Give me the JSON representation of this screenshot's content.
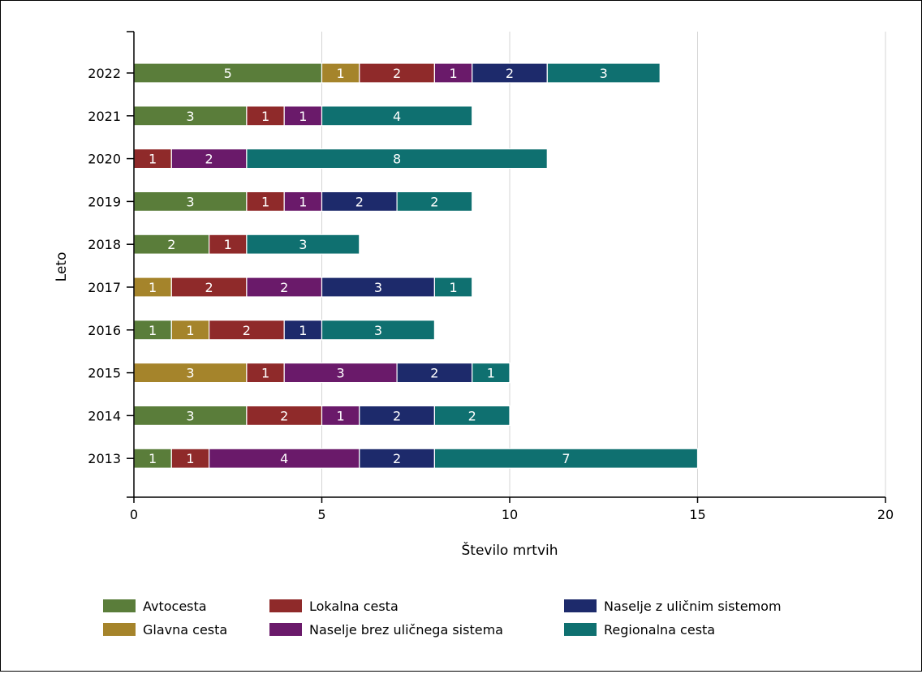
{
  "chart_data": {
    "type": "bar",
    "orientation": "horizontal",
    "stacked": true,
    "xlabel": "Število mrtvih",
    "ylabel": "Leto",
    "xlim": [
      0,
      20
    ],
    "xticks": [
      "0",
      "5",
      "10",
      "15",
      "20"
    ],
    "grid": "vertical",
    "legend_position": "bottom",
    "categories": [
      "2022",
      "2021",
      "2020",
      "2019",
      "2018",
      "2017",
      "2016",
      "2015",
      "2014",
      "2013"
    ],
    "series": [
      {
        "name": "Avtocesta",
        "color": "#5a7d3a",
        "values": [
          5,
          3,
          0,
          3,
          2,
          0,
          1,
          0,
          3,
          1
        ]
      },
      {
        "name": "Glavna cesta",
        "color": "#a5842b",
        "values": [
          1,
          0,
          0,
          0,
          0,
          1,
          1,
          3,
          0,
          0
        ]
      },
      {
        "name": "Lokalna cesta",
        "color": "#8f2a2a",
        "values": [
          2,
          1,
          1,
          1,
          1,
          2,
          2,
          1,
          2,
          1
        ]
      },
      {
        "name": "Naselje brez uličnega sistema",
        "color": "#6a1a6a",
        "values": [
          1,
          1,
          2,
          1,
          0,
          2,
          0,
          3,
          1,
          4
        ]
      },
      {
        "name": "Naselje z uličnim sistemom",
        "color": "#1d2a6b",
        "values": [
          2,
          0,
          0,
          2,
          0,
          3,
          1,
          2,
          2,
          2
        ]
      },
      {
        "name": "Regionalna cesta",
        "color": "#0f7070",
        "values": [
          3,
          4,
          8,
          2,
          3,
          1,
          3,
          1,
          2,
          7
        ]
      }
    ],
    "legend_order": [
      "Avtocesta",
      "Lokalna cesta",
      "Naselje z uličnim sistemom",
      "Glavna cesta",
      "Naselje brez uličnega sistema",
      "Regionalna cesta"
    ]
  }
}
